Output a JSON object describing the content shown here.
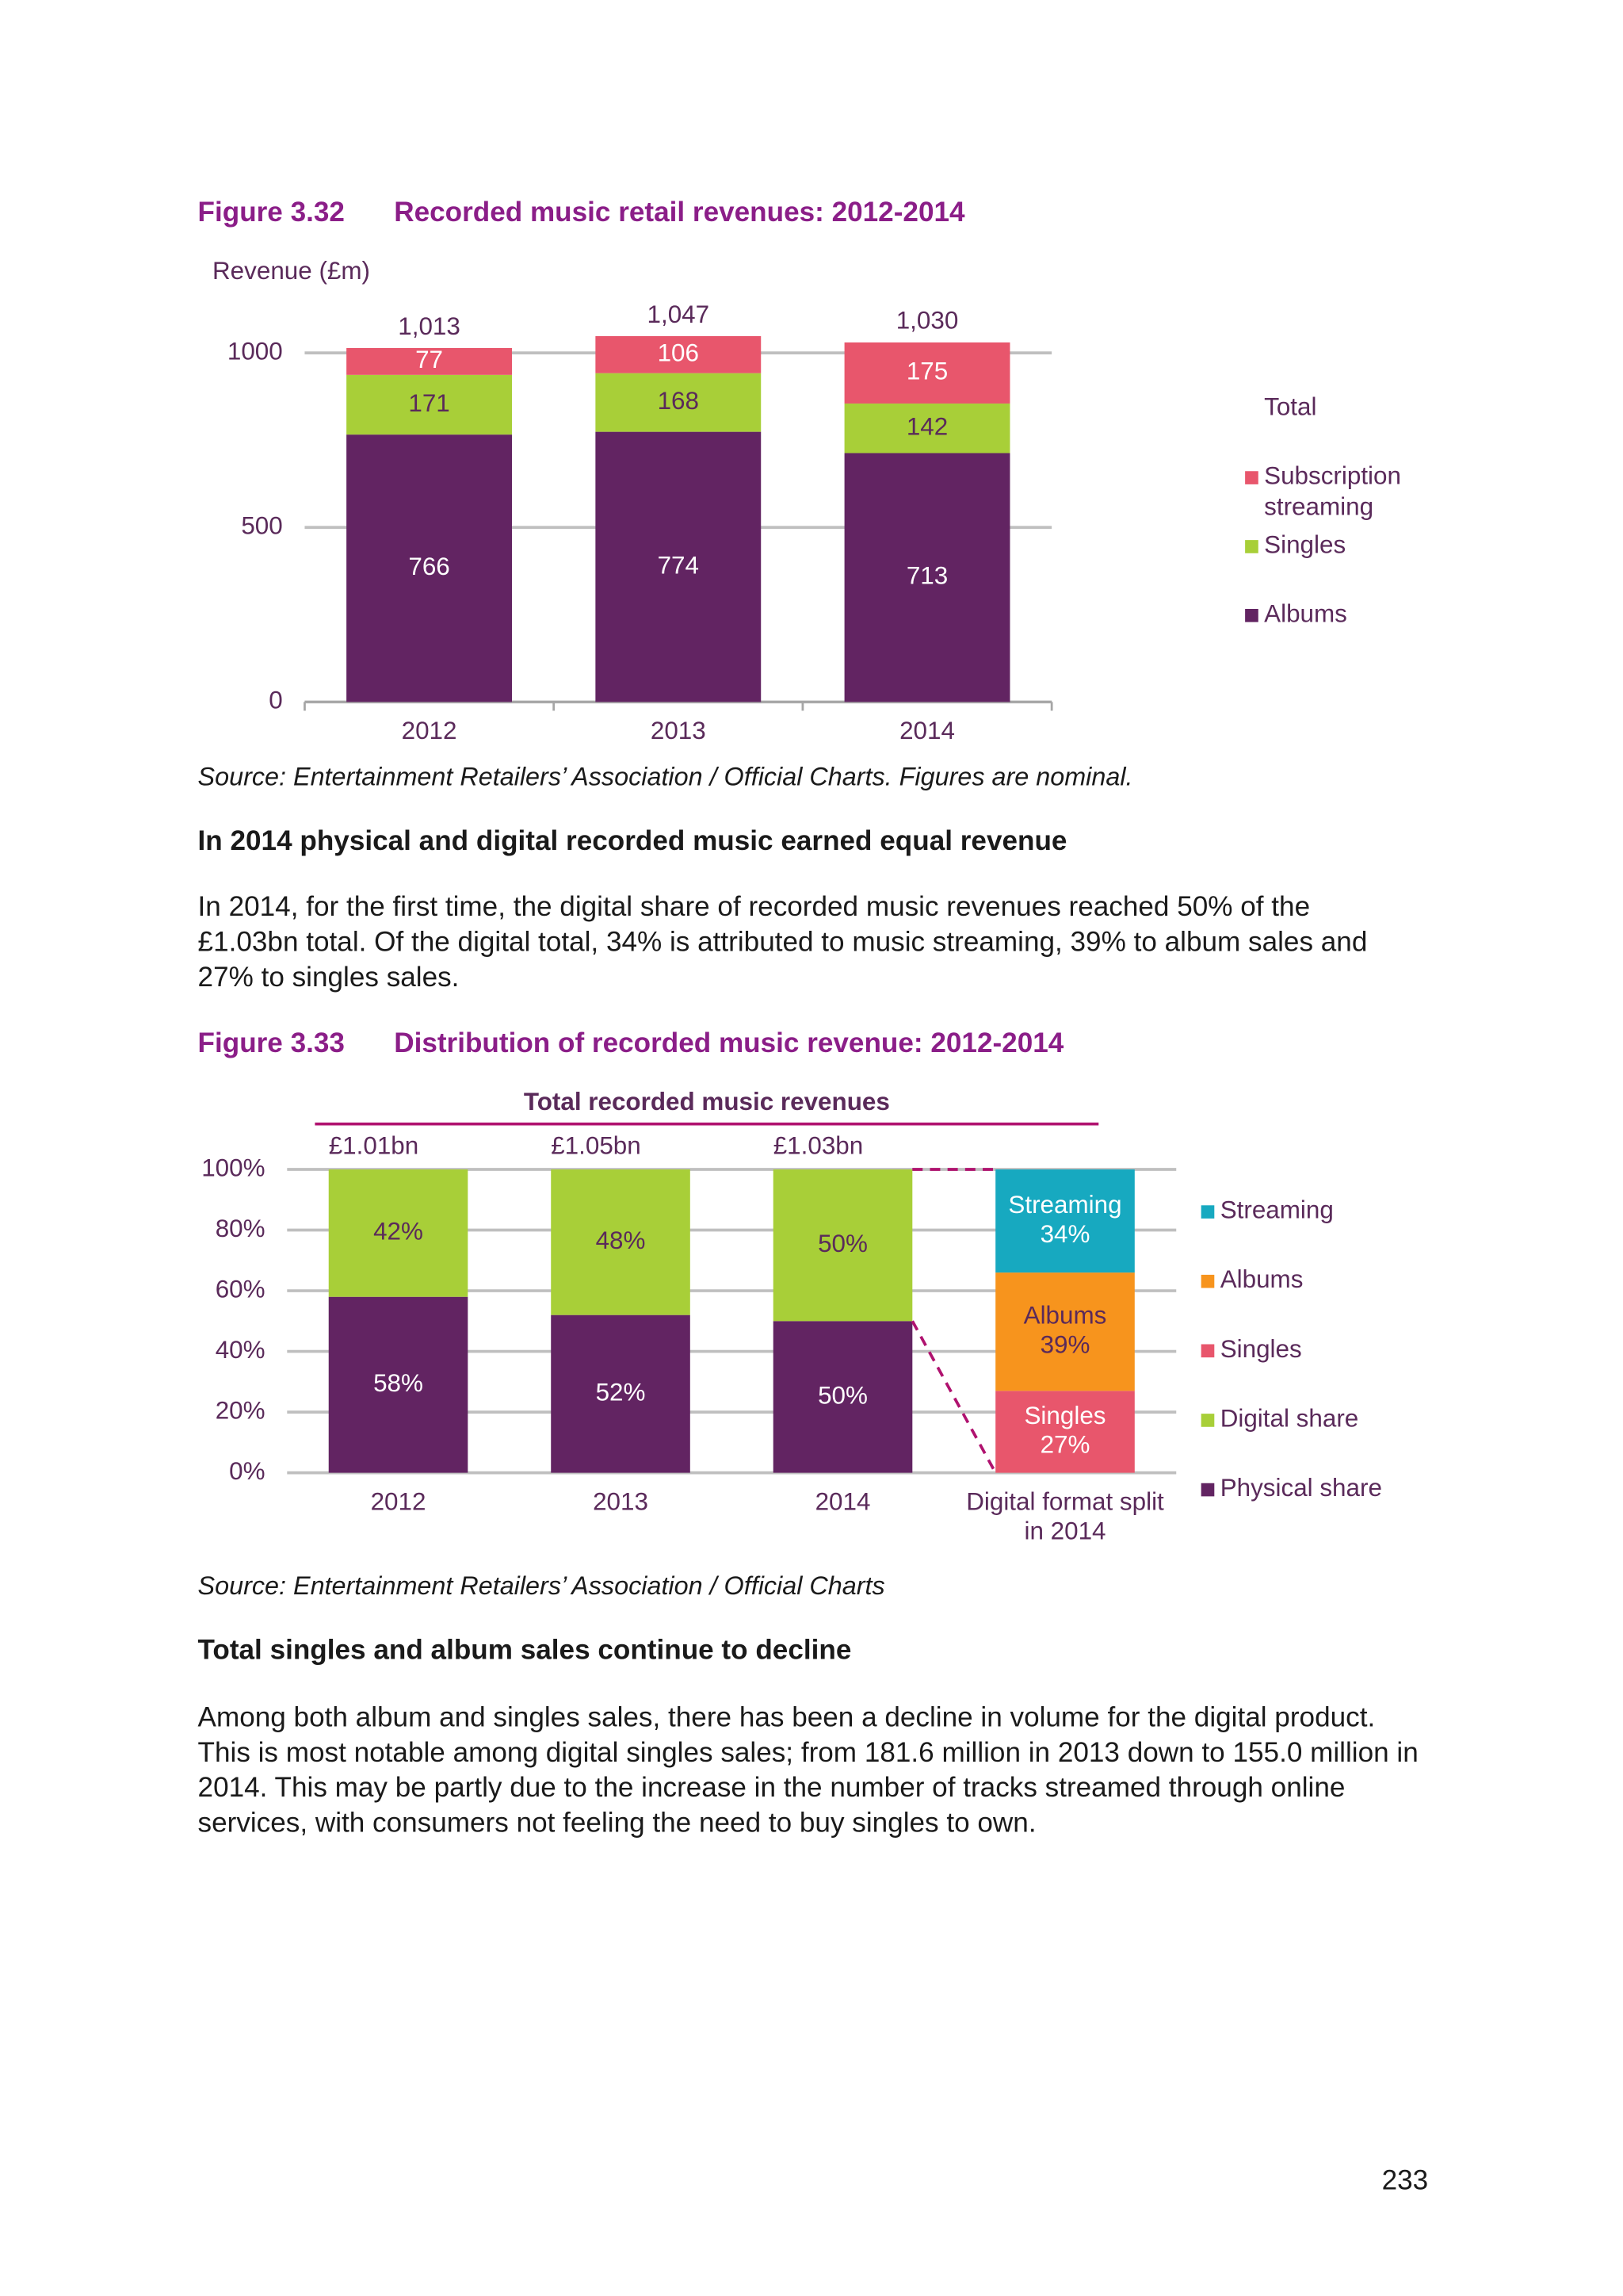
{
  "figures": [
    {
      "number": "Figure 3.32",
      "title": "Recorded music retail revenues: 2012-2014",
      "source": "Source: Entertainment Retailers’ Association / Official Charts. Figures are nominal."
    },
    {
      "number": "Figure 3.33",
      "title": "Distribution of recorded music revenue: 2012-2014",
      "source": "Source: Entertainment Retailers’ Association / Official Charts"
    }
  ],
  "sections": [
    {
      "heading": "In 2014 physical and digital recorded music earned equal revenue",
      "text": "In 2014, for the first time, the digital share of recorded music revenues reached 50% of the £1.03bn total. Of the digital total, 34% is attributed to music streaming, 39% to album sales and 27% to singles sales."
    },
    {
      "heading": "Total singles and album sales continue to decline",
      "text": "Among both album and singles sales, there has been a decline in volume for the digital product. This is most notable among digital singles sales; from 181.6 million in 2013 down to 155.0 million in 2014. This may be partly due to the increase in the number of tracks streamed through online services, with consumers not feeling the need to buy singles to own."
    }
  ],
  "page_number": 233,
  "chart_data": [
    {
      "type": "stacked_bar",
      "y_label": "Revenue (£m)",
      "categories": [
        "2012",
        "2013",
        "2014"
      ],
      "series": [
        {
          "name": "Albums",
          "color": "#622462",
          "values": [
            766,
            774,
            713
          ]
        },
        {
          "name": "Singles",
          "color": "#a8cf38",
          "values": [
            171,
            168,
            142
          ]
        },
        {
          "name": "Subscription streaming",
          "color": "#e8566c",
          "values": [
            77,
            106,
            175
          ]
        }
      ],
      "totals_name": "Total",
      "totals": [
        1013,
        1047,
        1030
      ],
      "total_labels": [
        "1,013",
        "1,047",
        "1,030"
      ],
      "ylim": [
        0,
        1100
      ],
      "yticks": [
        0,
        500,
        1000
      ],
      "grid": true,
      "legend": "right"
    },
    {
      "type": "stacked_bar",
      "header": "Total recorded music revenues",
      "total_labels": [
        "£1.01bn",
        "£1.05bn",
        "£1.03bn"
      ],
      "categories": [
        "2012",
        "2013",
        "2014",
        "Digital format split in 2014"
      ],
      "series": [
        {
          "name": "Physical share",
          "color": "#622462",
          "values": [
            58,
            52,
            50,
            null
          ],
          "value_labels": [
            "58%",
            "52%",
            "50%",
            null
          ]
        },
        {
          "name": "Digital share",
          "color": "#a8cf38",
          "values": [
            42,
            48,
            50,
            null
          ],
          "value_labels": [
            "42%",
            "48%",
            "50%",
            null
          ]
        },
        {
          "name": "Singles",
          "color": "#e8566c",
          "values": [
            null,
            null,
            null,
            27
          ],
          "value_labels": [
            null,
            null,
            null,
            "27%"
          ],
          "label_with_name": true
        },
        {
          "name": "Albums",
          "color": "#f7941d",
          "values": [
            null,
            null,
            null,
            39
          ],
          "value_labels": [
            null,
            null,
            null,
            "39%"
          ],
          "label_with_name": true
        },
        {
          "name": "Streaming",
          "color": "#17a9c0",
          "values": [
            null,
            null,
            null,
            34
          ],
          "value_labels": [
            null,
            null,
            null,
            "34%"
          ],
          "label_with_name": true
        }
      ],
      "ylim": [
        0,
        100
      ],
      "yticks": [
        {
          "value": 0,
          "label": "0%"
        },
        {
          "value": 20,
          "label": "20%"
        },
        {
          "value": 40,
          "label": "40%"
        },
        {
          "value": 60,
          "label": "60%"
        },
        {
          "value": 80,
          "label": "80%"
        },
        {
          "value": 100,
          "label": "100%"
        }
      ],
      "grid": true,
      "legend": "right",
      "connector": true
    }
  ]
}
